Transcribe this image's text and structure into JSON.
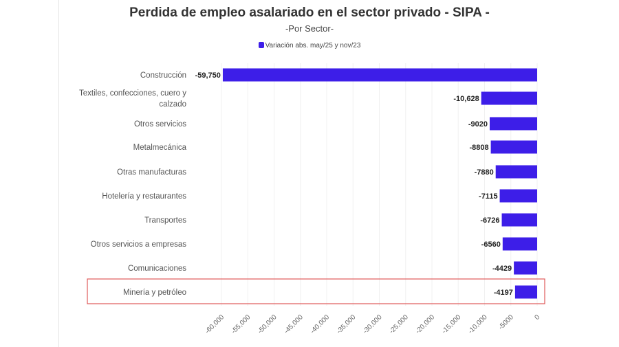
{
  "chart_data": {
    "type": "bar",
    "orientation": "horizontal",
    "title": "Perdida de empleo asalariado en el sector privado - SIPA -",
    "subtitle": "-Por Sector-",
    "categories": [
      "Construcción",
      "Textiles, confecciones, cuero y calzado",
      "Otros servicios",
      "Metalmecánica",
      "Otras manufacturas",
      "Hotelería y restaurantes",
      "Transportes",
      "Otros servicios a empresas",
      "Comunicaciones",
      "Minería y petróleo"
    ],
    "series": [
      {
        "name": "Variación abs. may/25 y nov/23",
        "values": [
          -59750,
          -10628,
          -9020,
          -8808,
          -7880,
          -7115,
          -6726,
          -6560,
          -4429,
          -4197
        ],
        "color": "#3d1ee8"
      }
    ],
    "data_labels": [
      "-59,750",
      "-10,628",
      "-9020",
      "-8808",
      "-7880",
      "-7115",
      "-6726",
      "-6560",
      "-4429",
      "-4197"
    ],
    "x_ticks": [
      -60000,
      -55000,
      -50000,
      -45000,
      -40000,
      -35000,
      -30000,
      -25000,
      -20000,
      -15000,
      -10000,
      -5000,
      0
    ],
    "x_tick_labels": [
      "-60,000",
      "-55,000",
      "-50,000",
      "-45,000",
      "-40,000",
      "-35,000",
      "-30,000",
      "-25,000",
      "-20,000",
      "-15,000",
      "-10,000",
      "-5000",
      "0"
    ],
    "xlim": [
      -60000,
      0
    ],
    "grid": true,
    "legend_position": "top",
    "highlight": {
      "category": "Minería y petróleo",
      "color": "#e05a5a"
    }
  }
}
